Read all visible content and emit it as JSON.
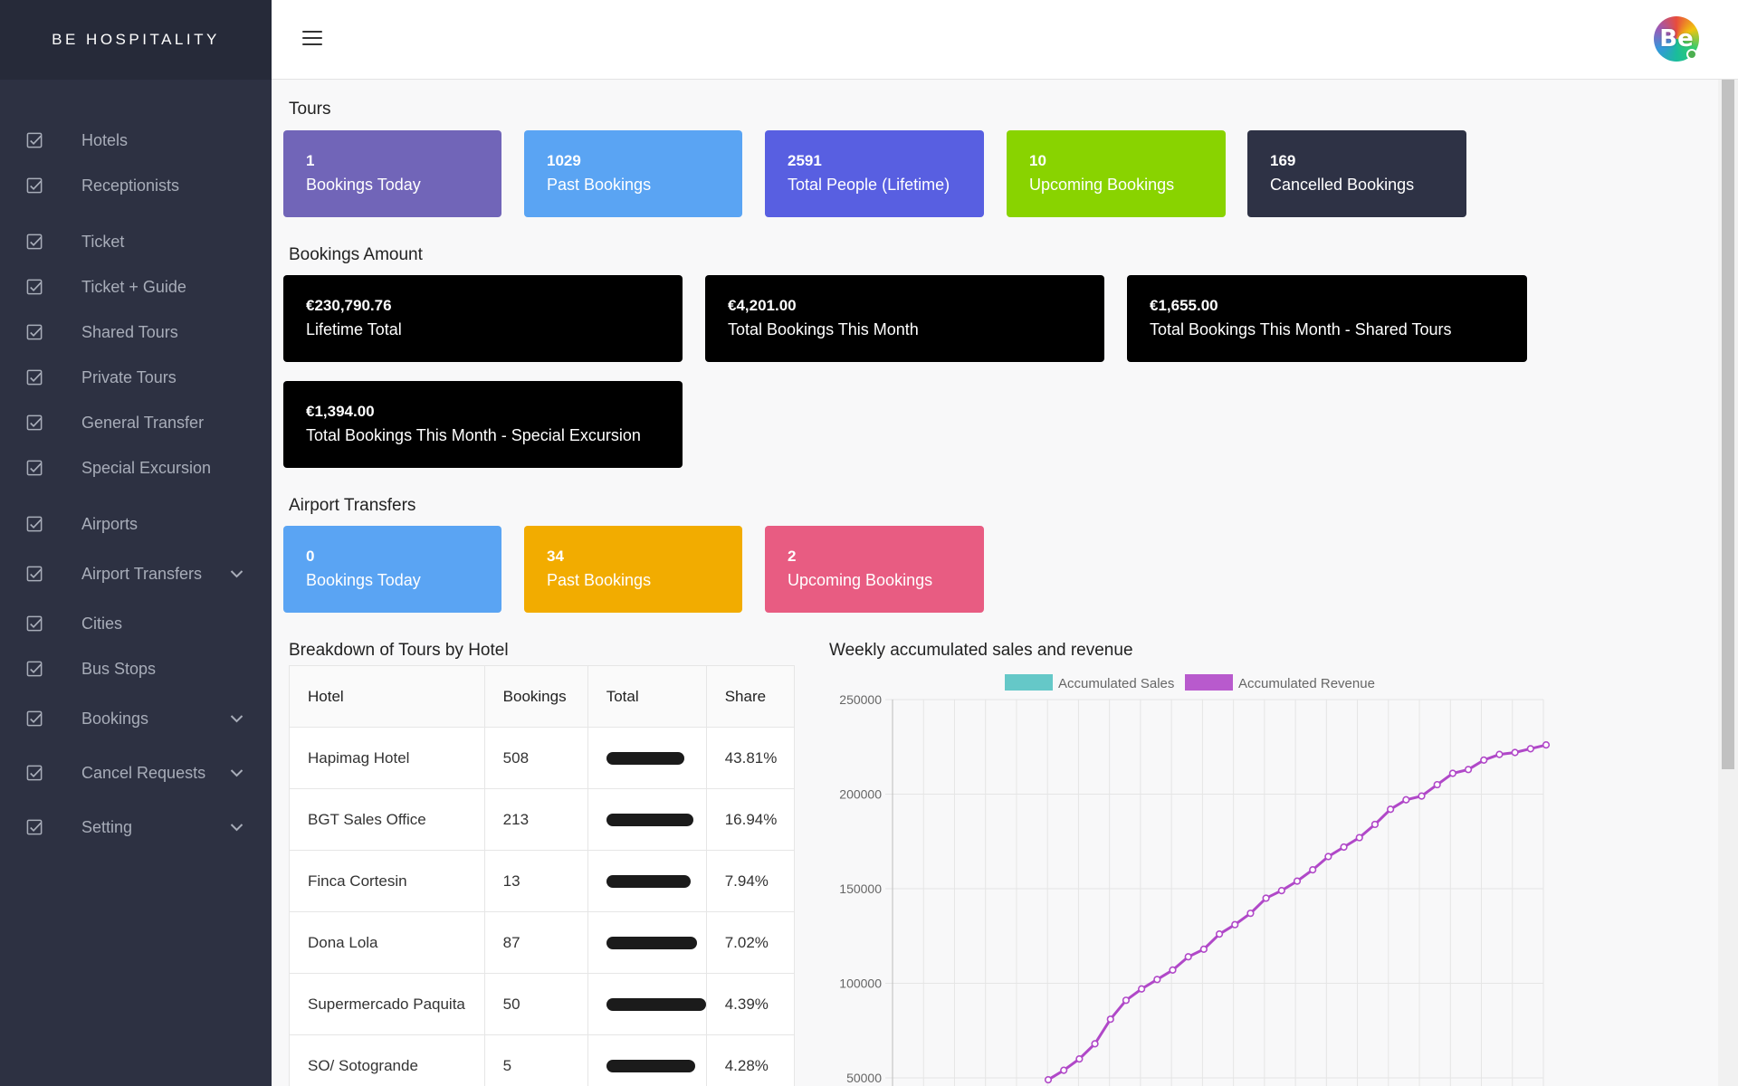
{
  "brand": "BE HOSPITALITY",
  "avatar_text": "Be",
  "sidebar": {
    "items": [
      {
        "label": "Hotels",
        "expandable": false
      },
      {
        "label": "Receptionists",
        "expandable": false
      },
      {
        "label": "Ticket",
        "expandable": false
      },
      {
        "label": "Ticket + Guide",
        "expandable": false
      },
      {
        "label": "Shared Tours",
        "expandable": false
      },
      {
        "label": "Private Tours",
        "expandable": false
      },
      {
        "label": "General Transfer",
        "expandable": false
      },
      {
        "label": "Special Excursion",
        "expandable": false
      },
      {
        "label": "Airports",
        "expandable": false
      },
      {
        "label": "Airport Transfers",
        "expandable": true
      },
      {
        "label": "Cities",
        "expandable": false
      },
      {
        "label": "Bus Stops",
        "expandable": false
      },
      {
        "label": "Bookings",
        "expandable": true
      },
      {
        "label": "Cancel Requests",
        "expandable": true
      },
      {
        "label": "Setting",
        "expandable": true
      }
    ]
  },
  "tours": {
    "title": "Tours",
    "cards": [
      {
        "value": "1",
        "label": "Bookings Today",
        "color": "#7165b8"
      },
      {
        "value": "1029",
        "label": "Past Bookings",
        "color": "#5aa4f3"
      },
      {
        "value": "2591",
        "label": "Total People (Lifetime)",
        "color": "#585fe1"
      },
      {
        "value": "10",
        "label": "Upcoming Bookings",
        "color": "#89d300"
      },
      {
        "value": "169",
        "label": "Cancelled Bookings",
        "color": "#2e3245"
      }
    ]
  },
  "amounts": {
    "title": "Bookings Amount",
    "cards": [
      {
        "value": "€230,790.76",
        "label": "Lifetime Total"
      },
      {
        "value": "€4,201.00",
        "label": "Total Bookings This Month"
      },
      {
        "value": "€1,655.00",
        "label": "Total Bookings This Month - Shared Tours"
      },
      {
        "value": "€1,394.00",
        "label": "Total Bookings This Month - Special Excursion"
      }
    ]
  },
  "airport": {
    "title": "Airport Transfers",
    "cards": [
      {
        "value": "0",
        "label": "Bookings Today",
        "color": "#5aa4f3"
      },
      {
        "value": "34",
        "label": "Past Bookings",
        "color": "#f2ac00"
      },
      {
        "value": "2",
        "label": "Upcoming Bookings",
        "color": "#e85c82"
      }
    ]
  },
  "breakdown": {
    "title": "Breakdown of Tours by Hotel",
    "headers": [
      "Hotel",
      "Bookings",
      "Total",
      "Share"
    ],
    "rows": [
      {
        "hotel": "Hapimag Hotel",
        "bookings": "508",
        "total": "[redacted]",
        "share": "43.81%"
      },
      {
        "hotel": "BGT Sales Office",
        "bookings": "213",
        "total": "[redacted]",
        "share": "16.94%"
      },
      {
        "hotel": "Finca Cortesin",
        "bookings": "13",
        "total": "[redacted]",
        "share": "7.94%"
      },
      {
        "hotel": "Dona Lola",
        "bookings": "87",
        "total": "[redacted]",
        "share": "7.02%"
      },
      {
        "hotel": "Supermercado Paquita",
        "bookings": "50",
        "total": "[redacted]",
        "share": "4.39%"
      },
      {
        "hotel": "SO/ Sotogrande",
        "bookings": "5",
        "total": "[redacted]",
        "share": "4.28%"
      }
    ]
  },
  "chart_data": {
    "type": "line",
    "title": "Weekly accumulated sales and revenue",
    "xlabel": "",
    "ylabel": "",
    "ylim": [
      50000,
      250000
    ],
    "yticks": [
      250000,
      200000,
      150000,
      100000,
      50000
    ],
    "grid": true,
    "legend": "top-center",
    "series": [
      {
        "name": "Accumulated Sales",
        "color": "#4bc0c0",
        "values": []
      },
      {
        "name": "Accumulated Revenue",
        "color": "#b048c8",
        "values": [
          49000,
          54000,
          60000,
          68000,
          81000,
          91000,
          97000,
          102000,
          107000,
          114000,
          118000,
          126000,
          131000,
          137000,
          145000,
          149000,
          154000,
          160000,
          167000,
          172000,
          177000,
          184000,
          192000,
          197000,
          199000,
          205000,
          211000,
          213000,
          218000,
          221000,
          222000,
          224000,
          226000
        ]
      }
    ]
  }
}
